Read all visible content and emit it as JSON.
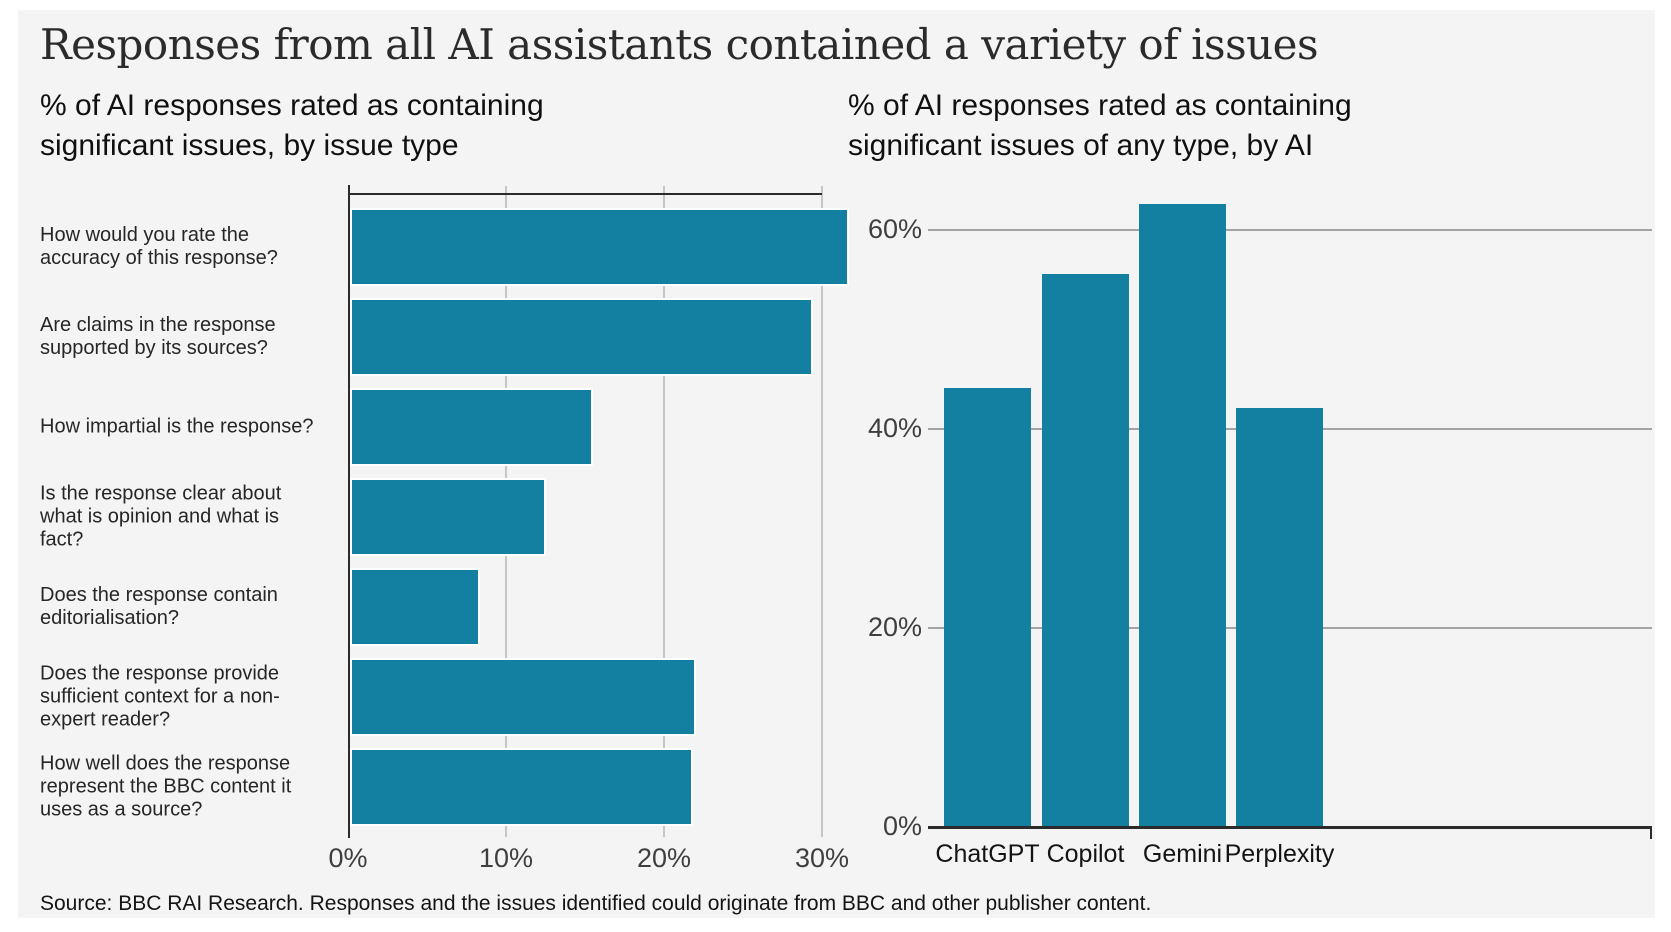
{
  "title": "Responses from all AI assistants contained a variety of issues",
  "source": "Source: BBC RAI Research. Responses and the issues identified could originate from BBC and other publisher content.",
  "colors": {
    "bar_teal": "#1380A1",
    "panel_background": "#f4f4f4",
    "left_gridline": "#c6c6c6",
    "right_gridline": "#a3a3a3",
    "axis": "#2b2b2b"
  },
  "chart_data": [
    {
      "type": "bar",
      "orientation": "horizontal",
      "title": "% of AI responses rated as containing significant issues, by issue type",
      "title_lines": [
        "% of AI responses rated as containing",
        "significant issues, by issue type"
      ],
      "categories": [
        "How would you rate the accuracy of this response?",
        "Are claims in the response supported by its sources?",
        "How impartial is the response?",
        "Is the response clear about what is opinion and what is fact?",
        "Does the response contain editorialisation?",
        "Does the response provide sufficient context for a non-expert reader?",
        "How well does the response represent the BBC content it uses as a source?"
      ],
      "values": [
        31.6,
        29.3,
        15.4,
        12.4,
        8.2,
        21.9,
        21.7
      ],
      "unit": "%",
      "x_tick_labels": [
        "0%",
        "10%",
        "20%",
        "30%"
      ],
      "x_tick_values": [
        0,
        10,
        20,
        30
      ],
      "xlim": [
        0,
        30
      ],
      "grid": true,
      "legend": "none"
    },
    {
      "type": "bar",
      "orientation": "vertical",
      "title": "% of AI responses rated as containing significant issues of any type, by AI",
      "title_lines": [
        "% of AI responses rated as containing",
        "significant issues of any type, by AI"
      ],
      "categories": [
        "ChatGPT",
        "Copilot",
        "Gemini",
        "Perplexity"
      ],
      "values": [
        44,
        55.5,
        62.5,
        42
      ],
      "unit": "%",
      "y_tick_labels": [
        "0%",
        "20%",
        "40%",
        "60%"
      ],
      "y_tick_values": [
        0,
        20,
        40,
        60
      ],
      "ylim": [
        0,
        64
      ],
      "grid": true,
      "legend": "none"
    }
  ]
}
